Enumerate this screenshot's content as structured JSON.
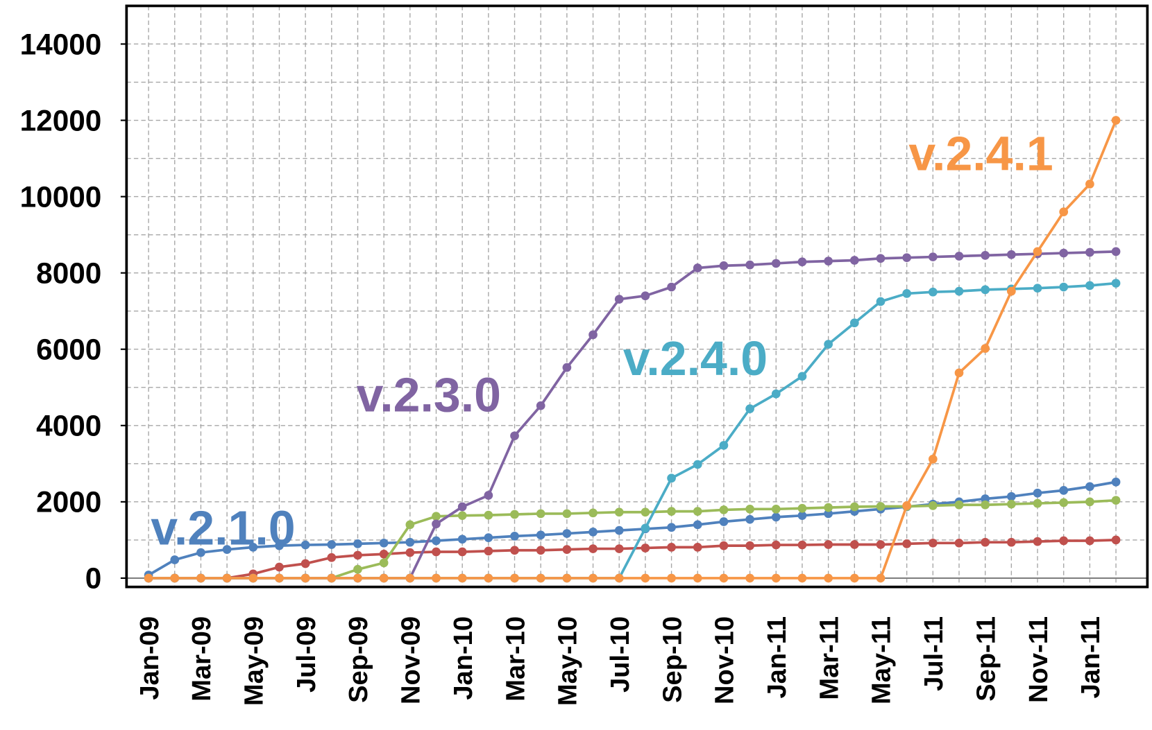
{
  "chart_data": {
    "type": "line",
    "categories": [
      "Jan-09",
      null,
      "Mar-09",
      null,
      "May-09",
      null,
      "Jul-09",
      null,
      "Sep-09",
      null,
      "Nov-09",
      null,
      "Jan-10",
      null,
      "Mar-10",
      null,
      "May-10",
      null,
      "Jul-10",
      null,
      "Sep-10",
      null,
      "Nov-10",
      null,
      "Jan-11",
      null,
      "Mar-11",
      null,
      "May-11",
      null,
      "Jul-11",
      null,
      "Sep-11",
      null,
      "Nov-11",
      null,
      "Jan-11",
      null
    ],
    "series": [
      {
        "name": "v.2.1.0",
        "color": "#4f81bd",
        "values": [
          80,
          480,
          670,
          750,
          810,
          850,
          870,
          880,
          900,
          920,
          940,
          980,
          1020,
          1060,
          1100,
          1130,
          1170,
          1210,
          1250,
          1290,
          1330,
          1400,
          1480,
          1540,
          1600,
          1640,
          1690,
          1750,
          1810,
          1870,
          1940,
          2000,
          2080,
          2140,
          2230,
          2300,
          2400,
          2520
        ]
      },
      {
        "color": "#c0504d",
        "values": [
          0,
          0,
          0,
          0,
          110,
          290,
          380,
          540,
          600,
          630,
          670,
          690,
          690,
          710,
          730,
          730,
          750,
          770,
          770,
          790,
          810,
          810,
          850,
          850,
          870,
          870,
          880,
          880,
          880,
          900,
          920,
          920,
          940,
          940,
          960,
          980,
          980,
          1000
        ]
      },
      {
        "color": "#9bbb59",
        "values": [
          0,
          0,
          0,
          0,
          0,
          0,
          0,
          0,
          230,
          400,
          1400,
          1620,
          1640,
          1650,
          1670,
          1690,
          1690,
          1710,
          1730,
          1730,
          1750,
          1750,
          1790,
          1810,
          1810,
          1830,
          1850,
          1870,
          1880,
          1880,
          1900,
          1920,
          1920,
          1940,
          1960,
          1980,
          2000,
          2040
        ]
      },
      {
        "name": "v.2.3.0",
        "color": "#8064a2",
        "values": [
          0,
          0,
          0,
          0,
          0,
          0,
          0,
          0,
          0,
          0,
          0,
          1420,
          1870,
          2170,
          3730,
          4520,
          5520,
          6380,
          7310,
          7400,
          7630,
          8130,
          8190,
          8210,
          8250,
          8290,
          8310,
          8330,
          8380,
          8400,
          8420,
          8440,
          8460,
          8480,
          8500,
          8520,
          8540,
          8560
        ]
      },
      {
        "name": "v.2.4.0",
        "color": "#4bacc6",
        "values": [
          0,
          0,
          0,
          0,
          0,
          0,
          0,
          0,
          0,
          0,
          0,
          0,
          0,
          0,
          0,
          0,
          0,
          0,
          0,
          1310,
          2620,
          2980,
          3480,
          4440,
          4830,
          5290,
          6130,
          6690,
          7250,
          7460,
          7500,
          7520,
          7560,
          7580,
          7600,
          7630,
          7670,
          7730
        ]
      },
      {
        "name": "v.2.4.1",
        "color": "#f79646",
        "values": [
          0,
          0,
          0,
          0,
          0,
          0,
          0,
          0,
          0,
          0,
          0,
          0,
          0,
          0,
          0,
          0,
          0,
          0,
          0,
          0,
          0,
          0,
          0,
          0,
          0,
          0,
          0,
          0,
          0,
          1900,
          3120,
          5380,
          6020,
          7520,
          8560,
          9600,
          10330,
          12000
        ]
      }
    ],
    "ylim": [
      0,
      15000
    ],
    "yticks": [
      0,
      2000,
      4000,
      6000,
      8000,
      10000,
      12000,
      14000
    ],
    "yminor": [
      1000,
      3000,
      5000,
      7000,
      9000,
      11000,
      13000
    ],
    "grid": true
  }
}
